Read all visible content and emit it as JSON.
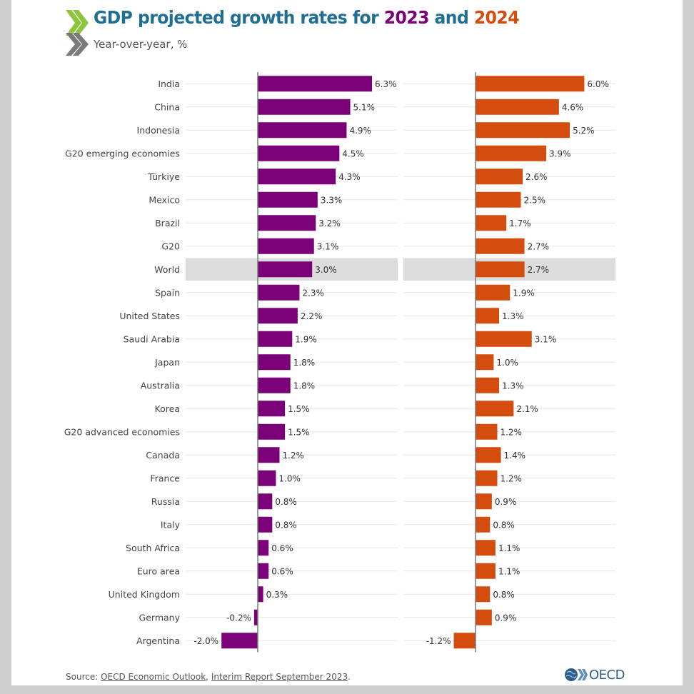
{
  "title": {
    "prefix": "GDP projected growth rates for ",
    "year1": "2023",
    "middle": " and ",
    "year2": "2024"
  },
  "subtitle": "Year-over-year, %",
  "source": {
    "prefix": "Source: ",
    "link1": "OECD Economic Outlook",
    "sep": ", ",
    "link2": "Interim Report September 2023",
    "suffix": "."
  },
  "logo_text": "OECD",
  "colors": {
    "series_2023": "#7a0177",
    "series_2024": "#d24d0e",
    "title": "#1f6f93",
    "highlight_row": "#dcdcdc"
  },
  "chart_data": {
    "type": "bar",
    "orientation": "horizontal",
    "title": "GDP projected growth rates for 2023 and 2024",
    "subtitle": "Year-over-year, %",
    "unit_suffix": "%",
    "highlight_category": "World",
    "categories": [
      "India",
      "China",
      "Indonesia",
      "G20 emerging economies",
      "Türkiye",
      "Mexico",
      "Brazil",
      "G20",
      "World",
      "Spain",
      "United States",
      "Saudi Arabia",
      "Japan",
      "Australia",
      "Korea",
      "G20 advanced economies",
      "Canada",
      "France",
      "Russia",
      "Italy",
      "South Africa",
      "Euro area",
      "United Kingdom",
      "Germany",
      "Argentina"
    ],
    "series": [
      {
        "name": "2023",
        "values": [
          6.3,
          5.1,
          4.9,
          4.5,
          4.3,
          3.3,
          3.2,
          3.1,
          3.0,
          2.3,
          2.2,
          1.9,
          1.8,
          1.8,
          1.5,
          1.5,
          1.2,
          1.0,
          0.8,
          0.8,
          0.6,
          0.6,
          0.3,
          -0.2,
          -2.0
        ]
      },
      {
        "name": "2024",
        "values": [
          6.0,
          4.6,
          5.2,
          3.9,
          2.6,
          2.5,
          1.7,
          2.7,
          2.7,
          1.9,
          1.3,
          3.1,
          1.0,
          1.3,
          2.1,
          1.2,
          1.4,
          1.2,
          0.9,
          0.8,
          1.1,
          1.1,
          0.8,
          0.9,
          -1.2
        ]
      }
    ],
    "xlabel": "",
    "ylabel": "",
    "grid": true,
    "legend": "none"
  }
}
